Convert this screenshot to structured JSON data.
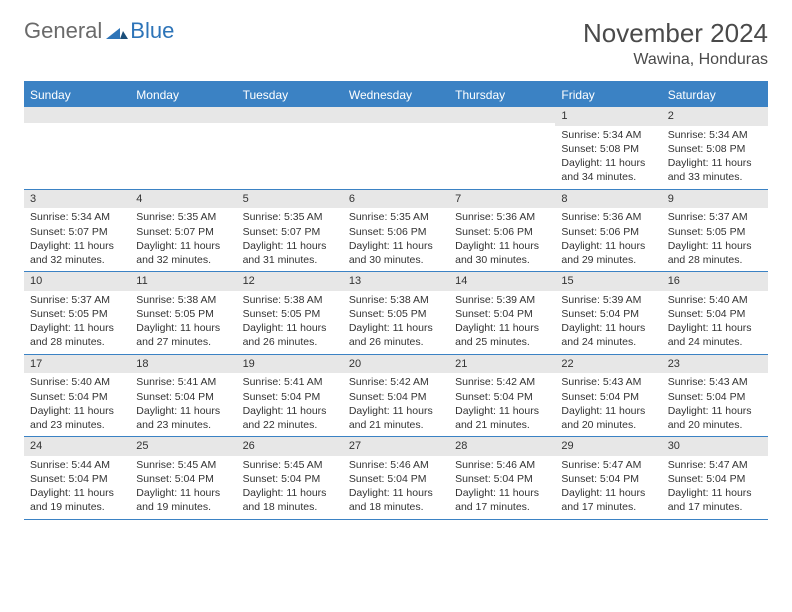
{
  "logo": {
    "general": "General",
    "blue": "Blue"
  },
  "title": "November 2024",
  "location": "Wawina, Honduras",
  "colors": {
    "header_bar": "#3b82c4",
    "day_number_bg": "#e7e7e7",
    "text": "#333333",
    "logo_gray": "#6a6a6a",
    "logo_blue": "#2d74b8"
  },
  "daysOfWeek": [
    "Sunday",
    "Monday",
    "Tuesday",
    "Wednesday",
    "Thursday",
    "Friday",
    "Saturday"
  ],
  "weeks": [
    [
      {
        "n": "",
        "lines": []
      },
      {
        "n": "",
        "lines": []
      },
      {
        "n": "",
        "lines": []
      },
      {
        "n": "",
        "lines": []
      },
      {
        "n": "",
        "lines": []
      },
      {
        "n": "1",
        "lines": [
          "Sunrise: 5:34 AM",
          "Sunset: 5:08 PM",
          "Daylight: 11 hours and 34 minutes."
        ]
      },
      {
        "n": "2",
        "lines": [
          "Sunrise: 5:34 AM",
          "Sunset: 5:08 PM",
          "Daylight: 11 hours and 33 minutes."
        ]
      }
    ],
    [
      {
        "n": "3",
        "lines": [
          "Sunrise: 5:34 AM",
          "Sunset: 5:07 PM",
          "Daylight: 11 hours and 32 minutes."
        ]
      },
      {
        "n": "4",
        "lines": [
          "Sunrise: 5:35 AM",
          "Sunset: 5:07 PM",
          "Daylight: 11 hours and 32 minutes."
        ]
      },
      {
        "n": "5",
        "lines": [
          "Sunrise: 5:35 AM",
          "Sunset: 5:07 PM",
          "Daylight: 11 hours and 31 minutes."
        ]
      },
      {
        "n": "6",
        "lines": [
          "Sunrise: 5:35 AM",
          "Sunset: 5:06 PM",
          "Daylight: 11 hours and 30 minutes."
        ]
      },
      {
        "n": "7",
        "lines": [
          "Sunrise: 5:36 AM",
          "Sunset: 5:06 PM",
          "Daylight: 11 hours and 30 minutes."
        ]
      },
      {
        "n": "8",
        "lines": [
          "Sunrise: 5:36 AM",
          "Sunset: 5:06 PM",
          "Daylight: 11 hours and 29 minutes."
        ]
      },
      {
        "n": "9",
        "lines": [
          "Sunrise: 5:37 AM",
          "Sunset: 5:05 PM",
          "Daylight: 11 hours and 28 minutes."
        ]
      }
    ],
    [
      {
        "n": "10",
        "lines": [
          "Sunrise: 5:37 AM",
          "Sunset: 5:05 PM",
          "Daylight: 11 hours and 28 minutes."
        ]
      },
      {
        "n": "11",
        "lines": [
          "Sunrise: 5:38 AM",
          "Sunset: 5:05 PM",
          "Daylight: 11 hours and 27 minutes."
        ]
      },
      {
        "n": "12",
        "lines": [
          "Sunrise: 5:38 AM",
          "Sunset: 5:05 PM",
          "Daylight: 11 hours and 26 minutes."
        ]
      },
      {
        "n": "13",
        "lines": [
          "Sunrise: 5:38 AM",
          "Sunset: 5:05 PM",
          "Daylight: 11 hours and 26 minutes."
        ]
      },
      {
        "n": "14",
        "lines": [
          "Sunrise: 5:39 AM",
          "Sunset: 5:04 PM",
          "Daylight: 11 hours and 25 minutes."
        ]
      },
      {
        "n": "15",
        "lines": [
          "Sunrise: 5:39 AM",
          "Sunset: 5:04 PM",
          "Daylight: 11 hours and 24 minutes."
        ]
      },
      {
        "n": "16",
        "lines": [
          "Sunrise: 5:40 AM",
          "Sunset: 5:04 PM",
          "Daylight: 11 hours and 24 minutes."
        ]
      }
    ],
    [
      {
        "n": "17",
        "lines": [
          "Sunrise: 5:40 AM",
          "Sunset: 5:04 PM",
          "Daylight: 11 hours and 23 minutes."
        ]
      },
      {
        "n": "18",
        "lines": [
          "Sunrise: 5:41 AM",
          "Sunset: 5:04 PM",
          "Daylight: 11 hours and 23 minutes."
        ]
      },
      {
        "n": "19",
        "lines": [
          "Sunrise: 5:41 AM",
          "Sunset: 5:04 PM",
          "Daylight: 11 hours and 22 minutes."
        ]
      },
      {
        "n": "20",
        "lines": [
          "Sunrise: 5:42 AM",
          "Sunset: 5:04 PM",
          "Daylight: 11 hours and 21 minutes."
        ]
      },
      {
        "n": "21",
        "lines": [
          "Sunrise: 5:42 AM",
          "Sunset: 5:04 PM",
          "Daylight: 11 hours and 21 minutes."
        ]
      },
      {
        "n": "22",
        "lines": [
          "Sunrise: 5:43 AM",
          "Sunset: 5:04 PM",
          "Daylight: 11 hours and 20 minutes."
        ]
      },
      {
        "n": "23",
        "lines": [
          "Sunrise: 5:43 AM",
          "Sunset: 5:04 PM",
          "Daylight: 11 hours and 20 minutes."
        ]
      }
    ],
    [
      {
        "n": "24",
        "lines": [
          "Sunrise: 5:44 AM",
          "Sunset: 5:04 PM",
          "Daylight: 11 hours and 19 minutes."
        ]
      },
      {
        "n": "25",
        "lines": [
          "Sunrise: 5:45 AM",
          "Sunset: 5:04 PM",
          "Daylight: 11 hours and 19 minutes."
        ]
      },
      {
        "n": "26",
        "lines": [
          "Sunrise: 5:45 AM",
          "Sunset: 5:04 PM",
          "Daylight: 11 hours and 18 minutes."
        ]
      },
      {
        "n": "27",
        "lines": [
          "Sunrise: 5:46 AM",
          "Sunset: 5:04 PM",
          "Daylight: 11 hours and 18 minutes."
        ]
      },
      {
        "n": "28",
        "lines": [
          "Sunrise: 5:46 AM",
          "Sunset: 5:04 PM",
          "Daylight: 11 hours and 17 minutes."
        ]
      },
      {
        "n": "29",
        "lines": [
          "Sunrise: 5:47 AM",
          "Sunset: 5:04 PM",
          "Daylight: 11 hours and 17 minutes."
        ]
      },
      {
        "n": "30",
        "lines": [
          "Sunrise: 5:47 AM",
          "Sunset: 5:04 PM",
          "Daylight: 11 hours and 17 minutes."
        ]
      }
    ]
  ]
}
